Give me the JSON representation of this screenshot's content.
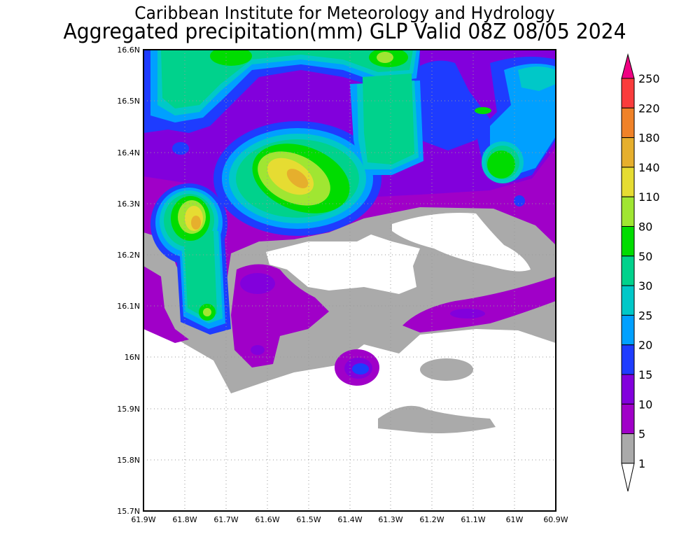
{
  "title": {
    "line1": "Caribbean Institute for Meteorology and Hydrology",
    "line2": "Aggregated precipitation(mm) GLP Valid 08Z 08/05 2024"
  },
  "map": {
    "lat_ticks": [
      "16.6N",
      "16.5N",
      "16.4N",
      "16.3N",
      "16.2N",
      "16.1N",
      "16N",
      "15.9N",
      "15.8N",
      "15.7N"
    ],
    "lon_ticks": [
      "61.9W",
      "61.8W",
      "61.7W",
      "61.6W",
      "61.5W",
      "61.4W",
      "61.3W",
      "61.2W",
      "61.1W",
      "61W",
      "60.9W"
    ]
  },
  "colorbar": {
    "labels": [
      "250",
      "220",
      "180",
      "140",
      "110",
      "80",
      "50",
      "30",
      "25",
      "20",
      "15",
      "10",
      "5",
      "1"
    ],
    "colors": [
      "#fa3c3c",
      "#f08228",
      "#e6af2d",
      "#e6dc32",
      "#a0e632",
      "#00dc00",
      "#00d28c",
      "#00c8c8",
      "#00a0ff",
      "#1e3cff",
      "#8200dc",
      "#a000c8",
      "#aaaaaa"
    ],
    "over_color": "#f00082",
    "under_color": "#ffffff"
  }
}
